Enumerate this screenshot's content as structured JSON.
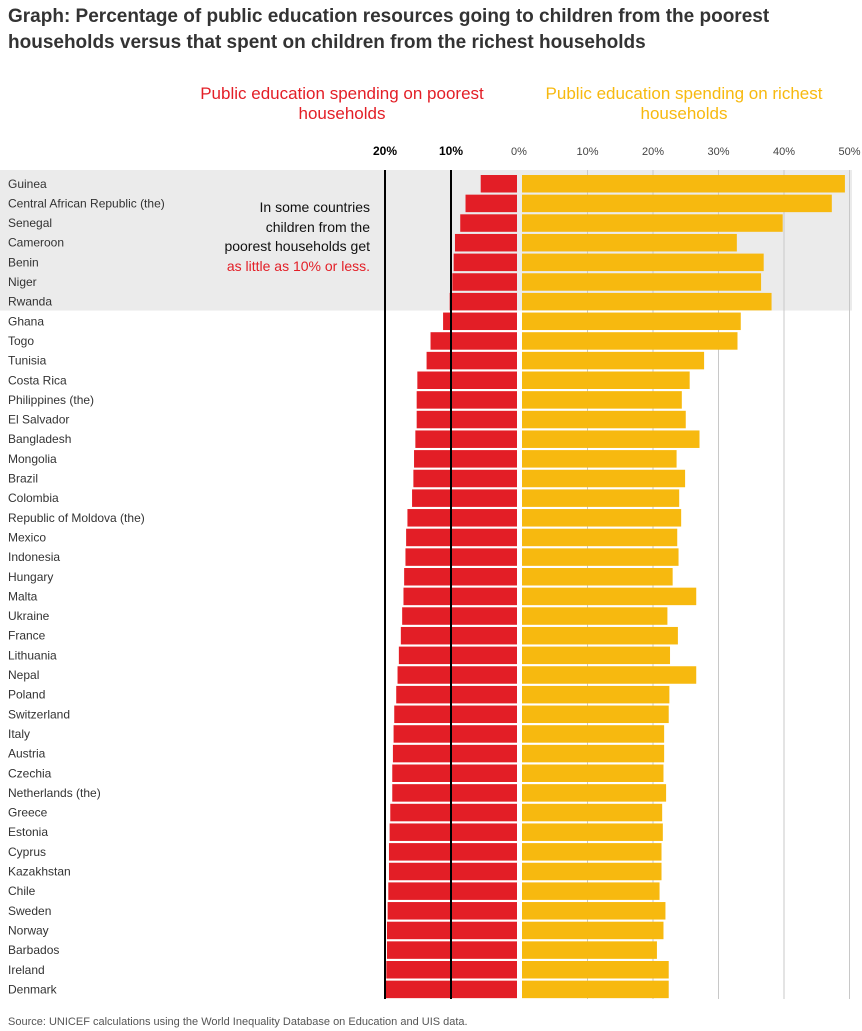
{
  "title": "Graph: Percentage of public education resources going to children from the poorest households versus that spent on children from the richest households",
  "legend_poor": "Public education spending on poorest households",
  "legend_rich": "Public education spending on richest households",
  "annotation": {
    "text": "In some countries children from the poorest households get",
    "highlight": "as little as 10% or less."
  },
  "source": "Source: UNICEF calculations using the World Inequality Database on Education and UIS data.",
  "colors": {
    "poor": "#e31e26",
    "rich": "#f7b90f",
    "highlight_band": "#ebebeb",
    "grid": "#c8c8c8"
  },
  "chart_data": {
    "type": "bar",
    "orientation": "horizontal-diverging",
    "poor_axis_ticks": [
      "20%",
      "10%",
      "0%"
    ],
    "rich_axis_ticks": [
      "10%",
      "20%",
      "30%",
      "40%",
      "50%"
    ],
    "poor_xlim": [
      0,
      20
    ],
    "rich_xlim": [
      0,
      50
    ],
    "highlighted_countries": [
      "Guinea",
      "Central African Republic (the)",
      "Senegal",
      "Cameroon",
      "Benin",
      "Niger",
      "Rwanda"
    ],
    "categories": [
      "Guinea",
      "Central African Republic (the)",
      "Senegal",
      "Cameroon",
      "Benin",
      "Niger",
      "Rwanda",
      "Ghana",
      "Togo",
      "Tunisia",
      "Costa Rica",
      "Philippines (the)",
      "El Salvador",
      "Bangladesh",
      "Mongolia",
      "Brazil",
      "Colombia",
      "Republic of Moldova (the)",
      "Mexico",
      "Indonesia",
      "Hungary",
      "Malta",
      "Ukraine",
      "France",
      "Lithuania",
      "Nepal",
      "Poland",
      "Switzerland",
      "Italy",
      "Austria",
      "Czechia",
      "Netherlands (the)",
      "Greece",
      "Estonia",
      "Cyprus",
      "Kazakhstan",
      "Chile",
      "Sweden",
      "Norway",
      "Barbados",
      "Ireland",
      "Denmark"
    ],
    "series": [
      {
        "values": [
          5.5,
          7.8,
          8.6,
          9.4,
          9.6,
          9.8,
          10.2,
          11.2,
          13.1,
          13.7,
          15.1,
          15.2,
          15.2,
          15.4,
          15.6,
          15.7,
          15.9,
          16.6,
          16.8,
          16.9,
          17.1,
          17.2,
          17.4,
          17.6,
          17.9,
          18.1,
          18.3,
          18.6,
          18.7,
          18.8,
          18.9,
          18.9,
          19.2,
          19.3,
          19.4,
          19.4,
          19.5,
          19.6,
          19.7,
          19.7,
          19.8,
          19.9
        ]
      },
      {
        "values": [
          49.3,
          47.3,
          39.8,
          32.8,
          36.9,
          36.5,
          38.1,
          33.4,
          32.9,
          27.8,
          25.6,
          24.4,
          25.0,
          27.1,
          23.6,
          24.9,
          24.0,
          24.3,
          23.7,
          23.9,
          23.0,
          26.6,
          22.2,
          23.8,
          22.6,
          26.6,
          22.5,
          22.4,
          21.7,
          21.7,
          21.6,
          22.0,
          21.4,
          21.5,
          21.3,
          21.3,
          21.0,
          21.9,
          21.6,
          20.6,
          22.4,
          22.4
        ]
      }
    ]
  }
}
